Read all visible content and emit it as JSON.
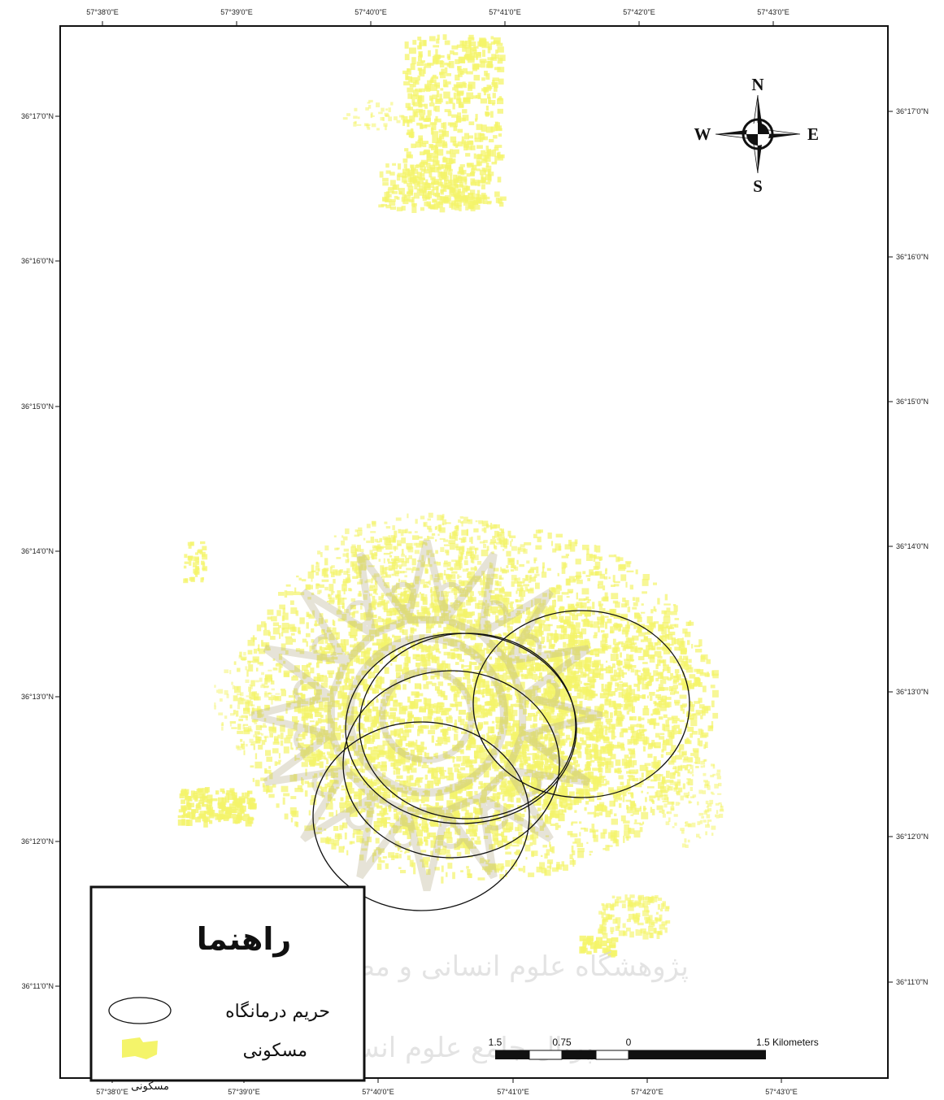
{
  "map": {
    "top_longitude_labels": [
      "57°38'0\"E",
      "57°39'0\"E",
      "57°40'0\"E",
      "57°41'0\"E",
      "57°42'0\"E",
      "57°43'0\"E"
    ],
    "bottom_longitude_labels": [
      "57°38'0\"E",
      "57°39'0\"E",
      "57°40'0\"E",
      "57°41'0\"E",
      "57°42'0\"E",
      "57°43'0\"E"
    ],
    "left_latitude_labels": [
      "36°17'0\"N",
      "36°16'0\"N",
      "36°15'0\"N",
      "36°14'0\"N",
      "36°13'0\"N",
      "36°12'0\"N",
      "36°11'0\"N"
    ],
    "right_latitude_labels": [
      "36°17'0\"N",
      "36°16'0\"N",
      "36°15'0\"N",
      "36°14'0\"N",
      "36°13'0\"N",
      "36°12'0\"N",
      "36°11'0\"N"
    ],
    "residential_color": "#f4f46a",
    "buffer_stroke_color": "#111111"
  },
  "compass": {
    "north": "N",
    "south": "S",
    "east": "E",
    "west": "W"
  },
  "legend": {
    "title": "راهنما",
    "items": [
      {
        "symbol": "ellipse-outline",
        "label": "حریم درمانگاه"
      },
      {
        "symbol": "yellow-patch",
        "label": "مسکونی"
      }
    ],
    "stray_label": "مسکونی"
  },
  "scale_bar": {
    "labels": [
      "1.5",
      "0.75",
      "0",
      "1.5 Kilometers"
    ]
  },
  "watermark": {
    "line1": "پژوهشگاه علوم انسانی و مطالعات فرهنگی",
    "line2": "پرتال جامع علوم انسانی"
  }
}
